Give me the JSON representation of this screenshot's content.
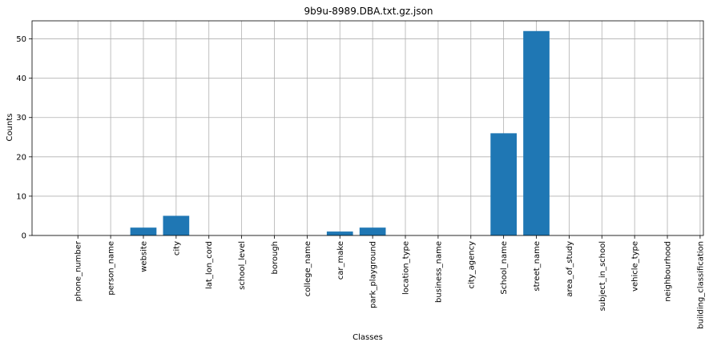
{
  "chart_data": {
    "type": "bar",
    "title": "9b9u-8989.DBA.txt.gz.json",
    "xlabel": "Classes",
    "ylabel": "Counts",
    "ylim": [
      0,
      54.6
    ],
    "yticks": [
      0,
      10,
      20,
      30,
      40,
      50
    ],
    "grid": true,
    "bar_color": "#1f77b4",
    "categories": [
      "phone_number",
      "person_name",
      "website",
      "city",
      "lat_lon_cord",
      "school_level",
      "borough",
      "college_name",
      "car_make",
      "park_playground",
      "location_type",
      "business_name",
      "city_agency",
      "School_name",
      "street_name",
      "area_of_study",
      "subject_in_school",
      "vehicle_type",
      "neighbourhood",
      "building_classification"
    ],
    "values": [
      0,
      0,
      2,
      5,
      0,
      0,
      0,
      0,
      1,
      2,
      0,
      0,
      0,
      26,
      52,
      0,
      0,
      0,
      0,
      0
    ]
  }
}
